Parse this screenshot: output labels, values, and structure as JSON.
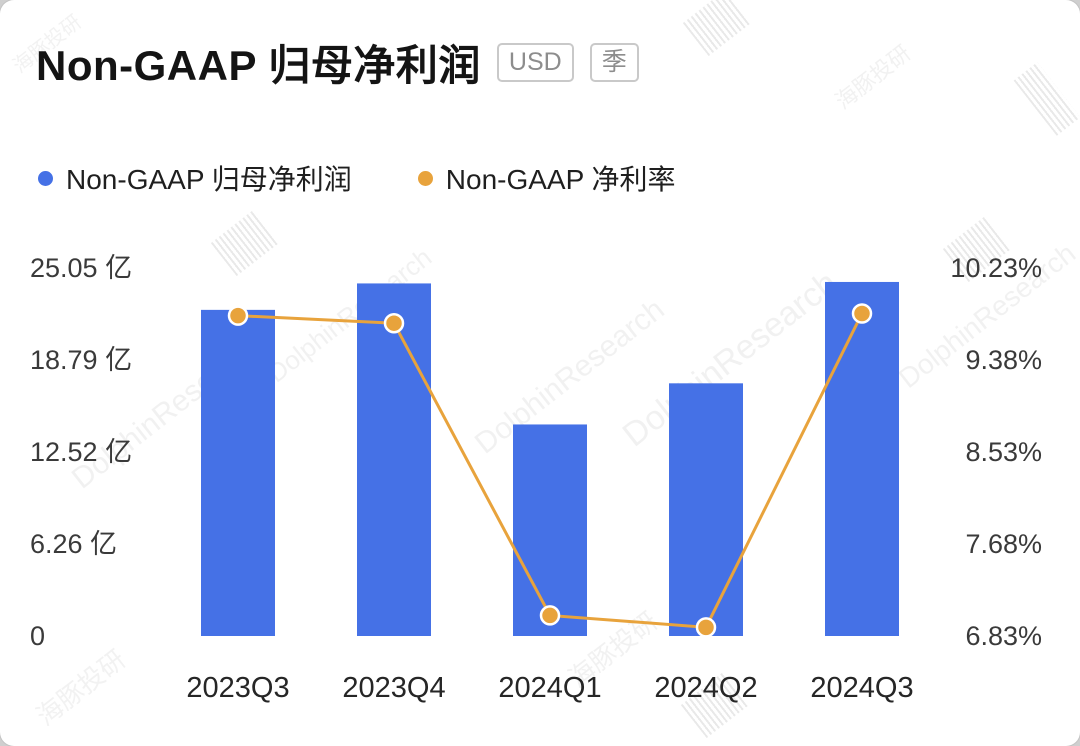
{
  "header": {
    "title": "Non-GAAP 归母净利润",
    "badges": [
      "USD",
      "季"
    ]
  },
  "legend": [
    {
      "label": "Non-GAAP 归母净利润",
      "color": "#4571E6"
    },
    {
      "label": "Non-GAAP 净利率",
      "color": "#E8A33C"
    }
  ],
  "watermark": {
    "en": "DolphinResearch",
    "cn": "海豚投研"
  },
  "chart_data": {
    "type": "bar",
    "subtype": "bar+line combo",
    "title": "Non-GAAP 归母净利润 (USD, 季)",
    "categories": [
      "2023Q3",
      "2023Q4",
      "2024Q1",
      "2024Q2",
      "2024Q3"
    ],
    "series": [
      {
        "name": "Non-GAAP 归母净利润",
        "type": "bar",
        "axis": "left",
        "unit": "亿",
        "color": "#4571E6",
        "values": [
          22.2,
          24.0,
          14.4,
          17.2,
          24.1
        ]
      },
      {
        "name": "Non-GAAP 净利率",
        "type": "line",
        "axis": "right",
        "unit": "%",
        "color": "#E8A33C",
        "values": [
          9.79,
          9.72,
          7.02,
          6.91,
          9.81
        ]
      }
    ],
    "left_axis": {
      "ticks": [
        "25.05 亿",
        "18.79 亿",
        "12.52 亿",
        "6.26 亿",
        "0"
      ],
      "min": 0,
      "max": 25.05
    },
    "right_axis": {
      "ticks": [
        "10.23%",
        "9.38%",
        "8.53%",
        "7.68%",
        "6.83%"
      ],
      "min": 6.83,
      "max": 10.23
    },
    "grid": false,
    "legend_position": "top-left"
  }
}
